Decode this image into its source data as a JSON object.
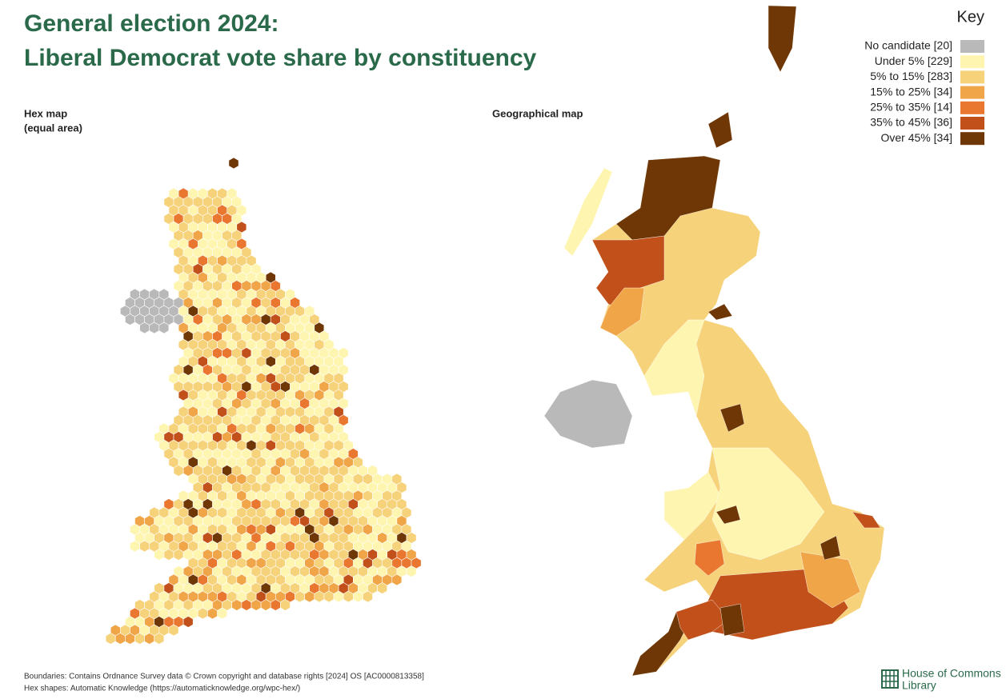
{
  "header": {
    "title_line1": "General election 2024:",
    "title_line2": "Liberal Democrat vote share by constituency"
  },
  "panels": {
    "hex_title": "Hex map",
    "hex_subtitle": "(equal area)",
    "geo_title": "Geographical map"
  },
  "key": {
    "title": "Key",
    "items": [
      {
        "label": "No candidate [20]",
        "color": "#b9b9b9"
      },
      {
        "label": "Under 5% [229]",
        "color": "#fdf5b0"
      },
      {
        "label": "5% to 15% [283]",
        "color": "#f6d27a"
      },
      {
        "label": "15% to 25% [34]",
        "color": "#f0a648"
      },
      {
        "label": "25% to 35% [14]",
        "color": "#e9772f"
      },
      {
        "label": "35% to 45% [36]",
        "color": "#c2501a"
      },
      {
        "label": "Over 45% [34]",
        "color": "#6f3706"
      }
    ]
  },
  "footer": {
    "source1": "Boundaries: Contains Ordnance Survey data © Crown copyright and database rights [2024] OS [AC0000813358]",
    "source2": "Hex shapes: Automatic Knowledge (https://automaticknowledge.org/wpc-hex/)",
    "logo_line1": "House of Commons",
    "logo_line2": "Library"
  }
}
